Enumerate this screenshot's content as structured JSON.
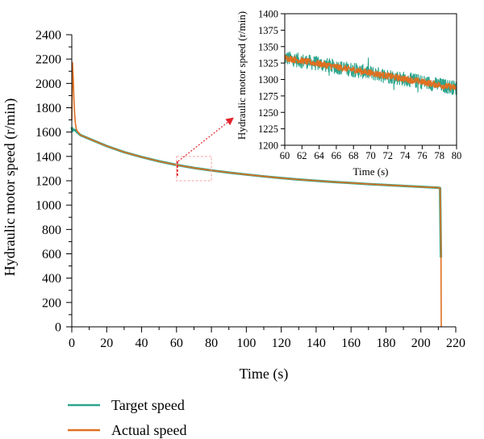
{
  "chart_data": [
    {
      "type": "line",
      "title": "",
      "xlabel": "Time (s)",
      "ylabel": "Hydraulic motor speed (r/min)",
      "xlim": [
        0,
        220
      ],
      "ylim": [
        0,
        2400
      ],
      "x_ticks": [
        0,
        20,
        40,
        60,
        80,
        100,
        120,
        140,
        160,
        180,
        200,
        220
      ],
      "y_ticks": [
        0,
        200,
        400,
        600,
        800,
        1000,
        1200,
        1400,
        1600,
        1800,
        2000,
        2200,
        2400
      ],
      "legend_position": "bottom-left",
      "grid": false,
      "series": [
        {
          "name": "Target speed",
          "color": "#2ca58d",
          "x": [
            0,
            0.4,
            1,
            2,
            3,
            5,
            10,
            15,
            20,
            30,
            40,
            50,
            60,
            70,
            80,
            90,
            100,
            110,
            120,
            130,
            140,
            150,
            160,
            170,
            180,
            190,
            200,
            210,
            211,
            211.5
          ],
          "y": [
            1640,
            1610,
            1620,
            1615,
            1600,
            1575,
            1545,
            1515,
            1485,
            1435,
            1395,
            1360,
            1330,
            1305,
            1285,
            1267,
            1251,
            1236,
            1222,
            1210,
            1200,
            1190,
            1182,
            1173,
            1165,
            1158,
            1150,
            1143,
            1140,
            570
          ]
        },
        {
          "name": "Actual speed",
          "color": "#e07020",
          "x": [
            0,
            0.4,
            0.8,
            1.2,
            1.6,
            2,
            2.5,
            3,
            5,
            10,
            15,
            20,
            30,
            40,
            50,
            60,
            70,
            80,
            90,
            100,
            110,
            120,
            130,
            140,
            150,
            160,
            170,
            180,
            190,
            200,
            210,
            211,
            211.5,
            211.7
          ],
          "y": [
            1700,
            2170,
            2050,
            1880,
            1760,
            1680,
            1630,
            1610,
            1575,
            1545,
            1515,
            1485,
            1435,
            1395,
            1360,
            1330,
            1305,
            1285,
            1267,
            1251,
            1236,
            1222,
            1210,
            1200,
            1190,
            1182,
            1173,
            1165,
            1158,
            1150,
            1143,
            1140,
            700,
            0
          ]
        }
      ],
      "highlight_box": {
        "x": [
          60,
          80
        ],
        "y": [
          1200,
          1400
        ]
      }
    },
    {
      "type": "line",
      "title": "",
      "xlabel": "Time (s)",
      "ylabel": "Hydraulic motor speed (r/min)",
      "xlim": [
        60,
        80
      ],
      "ylim": [
        1200,
        1400
      ],
      "x_ticks": [
        60,
        62,
        64,
        66,
        68,
        70,
        72,
        74,
        76,
        78,
        80
      ],
      "y_ticks": [
        1200,
        1225,
        1250,
        1275,
        1300,
        1325,
        1350,
        1375,
        1400
      ],
      "grid": false,
      "series": [
        {
          "name": "Target speed",
          "color": "#2ca58d",
          "x": [
            60,
            80
          ],
          "y": [
            1333,
            1287
          ],
          "noise_amplitude": 11
        },
        {
          "name": "Actual speed",
          "color": "#e07020",
          "x": [
            60,
            80
          ],
          "y": [
            1333,
            1287
          ],
          "noise_amplitude": 5
        }
      ]
    }
  ]
}
